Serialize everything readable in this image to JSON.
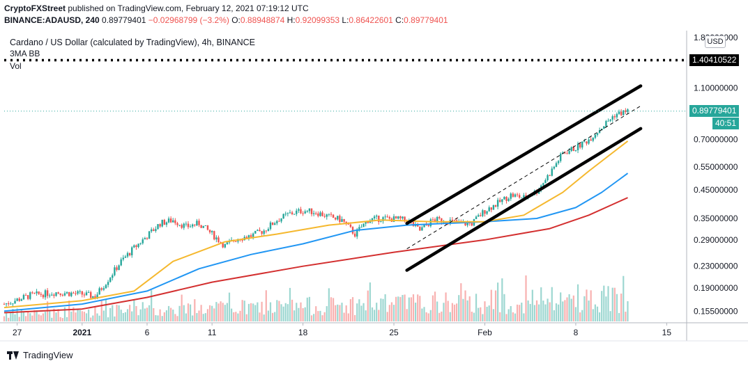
{
  "header": {
    "publisher": "CryptoFXStreet",
    "published_text": "published on TradingView.com, February 12, 2021 07:19:12 UTC",
    "symbol_line": "BINANCE:ADAUSD, 240",
    "close_value": "0.89779401",
    "change": "−0.02968799 (−3.2%)",
    "o_label": "O:",
    "o_value": "0.88948874",
    "h_label": "H:",
    "h_value": "0.92099353",
    "l_label": "L:",
    "l_value": "0.86422601",
    "c_label": "C:",
    "c_value": "0.89779401"
  },
  "legend": {
    "title": "Cardano / US Dollar (calculated by TradingView), 4h, BINANCE",
    "indicator": "3MA BB",
    "vol": "Vol"
  },
  "axis": {
    "currency_button": "USD",
    "top_tick": "1.80000000"
  },
  "tags": {
    "resistance": "1.40410522",
    "last_price": "0.89779401",
    "countdown": "40:51"
  },
  "brand": {
    "name": "TradingView"
  },
  "colors": {
    "up": "#26a69a",
    "down": "#ef5350",
    "ma_fast": "#f5b82e",
    "ma_mid": "#2196f3",
    "ma_slow": "#d32f2f",
    "channel": "#000000",
    "last_tag": "#26a69a",
    "resistance_tag": "#000000"
  },
  "chart_data": {
    "type": "candlestick",
    "symbol": "ADAUSD",
    "interval": "4h",
    "y_scale": "log",
    "y_ticks": [
      "1.10000000",
      "0.70000000",
      "0.55000000",
      "0.45000000",
      "0.35000000",
      "0.29000000",
      "0.23000000",
      "0.19000000",
      "0.15500000"
    ],
    "y_tick_values": [
      1.1,
      0.7,
      0.55,
      0.45,
      0.35,
      0.29,
      0.23,
      0.19,
      0.155
    ],
    "x_ticks": [
      "27",
      "2021",
      "6",
      "11",
      "18",
      "25",
      "Feb",
      "8",
      "15"
    ],
    "x_tick_dates": [
      "2020-12-27",
      "2021-01-01",
      "2021-01-06",
      "2021-01-11",
      "2021-01-18",
      "2021-01-25",
      "2021-02-01",
      "2021-02-08",
      "2021-02-15"
    ],
    "x_range": [
      "2020-12-26",
      "2021-02-16"
    ],
    "price_path": [
      [
        "2020-12-26",
        0.165
      ],
      [
        "2020-12-28",
        0.178
      ],
      [
        "2020-12-30",
        0.183
      ],
      [
        "2021-01-01",
        0.18
      ],
      [
        "2021-01-02",
        0.176
      ],
      [
        "2021-01-03",
        0.205
      ],
      [
        "2021-01-04",
        0.24
      ],
      [
        "2021-01-05",
        0.27
      ],
      [
        "2021-01-06",
        0.3
      ],
      [
        "2021-01-07",
        0.335
      ],
      [
        "2021-01-08",
        0.345
      ],
      [
        "2021-01-09",
        0.325
      ],
      [
        "2021-01-10",
        0.335
      ],
      [
        "2021-01-11",
        0.305
      ],
      [
        "2021-01-12",
        0.275
      ],
      [
        "2021-01-13",
        0.295
      ],
      [
        "2021-01-14",
        0.3
      ],
      [
        "2021-01-15",
        0.315
      ],
      [
        "2021-01-16",
        0.345
      ],
      [
        "2021-01-17",
        0.365
      ],
      [
        "2021-01-18",
        0.375
      ],
      [
        "2021-01-19",
        0.37
      ],
      [
        "2021-01-20",
        0.355
      ],
      [
        "2021-01-21",
        0.345
      ],
      [
        "2021-01-22",
        0.305
      ],
      [
        "2021-01-23",
        0.345
      ],
      [
        "2021-01-24",
        0.35
      ],
      [
        "2021-01-25",
        0.348
      ],
      [
        "2021-01-26",
        0.345
      ],
      [
        "2021-01-27",
        0.315
      ],
      [
        "2021-01-28",
        0.345
      ],
      [
        "2021-01-29",
        0.345
      ],
      [
        "2021-01-30",
        0.335
      ],
      [
        "2021-01-31",
        0.335
      ],
      [
        "2021-02-01",
        0.375
      ],
      [
        "2021-02-02",
        0.4
      ],
      [
        "2021-02-03",
        0.43
      ],
      [
        "2021-02-04",
        0.42
      ],
      [
        "2021-02-05",
        0.445
      ],
      [
        "2021-02-06",
        0.52
      ],
      [
        "2021-02-07",
        0.62
      ],
      [
        "2021-02-08",
        0.65
      ],
      [
        "2021-02-09",
        0.7
      ],
      [
        "2021-02-10",
        0.78
      ],
      [
        "2021-02-11",
        0.87
      ],
      [
        "2021-02-12",
        0.898
      ]
    ],
    "ma_fast": [
      [
        "2020-12-26",
        0.16
      ],
      [
        "2021-01-01",
        0.17
      ],
      [
        "2021-01-05",
        0.185
      ],
      [
        "2021-01-08",
        0.24
      ],
      [
        "2021-01-12",
        0.285
      ],
      [
        "2021-01-16",
        0.305
      ],
      [
        "2021-01-20",
        0.33
      ],
      [
        "2021-01-24",
        0.345
      ],
      [
        "2021-01-28",
        0.34
      ],
      [
        "2021-02-01",
        0.34
      ],
      [
        "2021-02-04",
        0.36
      ],
      [
        "2021-02-07",
        0.44
      ],
      [
        "2021-02-09",
        0.53
      ],
      [
        "2021-02-12",
        0.69
      ]
    ],
    "ma_mid": [
      [
        "2020-12-26",
        0.155
      ],
      [
        "2021-01-01",
        0.165
      ],
      [
        "2021-01-06",
        0.185
      ],
      [
        "2021-01-10",
        0.225
      ],
      [
        "2021-01-14",
        0.255
      ],
      [
        "2021-01-18",
        0.28
      ],
      [
        "2021-01-22",
        0.315
      ],
      [
        "2021-01-26",
        0.33
      ],
      [
        "2021-02-01",
        0.34
      ],
      [
        "2021-02-05",
        0.35
      ],
      [
        "2021-02-08",
        0.385
      ],
      [
        "2021-02-10",
        0.44
      ],
      [
        "2021-02-12",
        0.52
      ]
    ],
    "ma_slow": [
      [
        "2020-12-26",
        0.153
      ],
      [
        "2021-01-01",
        0.158
      ],
      [
        "2021-01-06",
        0.175
      ],
      [
        "2021-01-11",
        0.2
      ],
      [
        "2021-01-18",
        0.23
      ],
      [
        "2021-01-25",
        0.26
      ],
      [
        "2021-02-01",
        0.29
      ],
      [
        "2021-02-06",
        0.32
      ],
      [
        "2021-02-09",
        0.36
      ],
      [
        "2021-02-12",
        0.42
      ]
    ],
    "channel_upper": [
      [
        "2021-01-26",
        0.335
      ],
      [
        "2021-02-13",
        1.12
      ]
    ],
    "channel_mid": [
      [
        "2021-01-26",
        0.268
      ],
      [
        "2021-02-13",
        0.94
      ]
    ],
    "channel_lower": [
      [
        "2021-01-26",
        0.222
      ],
      [
        "2021-02-13",
        0.77
      ]
    ],
    "resistance_level": 1.40410522,
    "last_price": 0.89779401
  }
}
